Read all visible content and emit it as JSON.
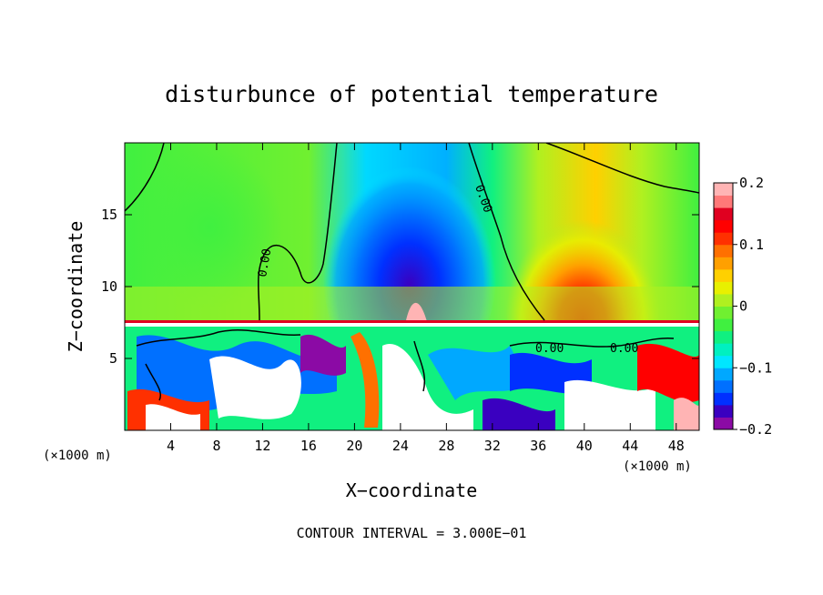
{
  "chart_data": {
    "type": "heatmap",
    "title": "disturbunce of potential temperature",
    "xlabel": "X−coordinate",
    "ylabel": "Z−coordinate",
    "x_unit": "(×1000 m)",
    "y_unit": "(×1000 m)",
    "xlim": [
      0,
      50
    ],
    "ylim": [
      0,
      20
    ],
    "x_ticks": [
      4,
      8,
      12,
      16,
      20,
      24,
      28,
      32,
      36,
      40,
      44,
      48
    ],
    "y_ticks": [
      5,
      10,
      15
    ],
    "colorbar": {
      "range": [
        -0.2,
        0.2
      ],
      "ticks": [
        0.2,
        0.1,
        0,
        -0.1,
        -0.2
      ],
      "tick_labels": [
        "0.2",
        "0.1",
        "0",
        "−0.1",
        "−0.2"
      ],
      "colors": [
        "#8b0aa5",
        "#3a00c0",
        "#0030ff",
        "#0070ff",
        "#00a8ff",
        "#00e6ff",
        "#00f0c0",
        "#10f080",
        "#40f040",
        "#70f030",
        "#b0f020",
        "#e8f000",
        "#ffd000",
        "#ffa000",
        "#ff7000",
        "#ff3000",
        "#ff0000",
        "#e00020",
        "#ff7878",
        "#ffb4b4"
      ]
    },
    "contour_label": "0.00",
    "contour_interval_text": "CONTOUR INTERVAL = 3.000E−01",
    "grid": false,
    "legend": "colorbar right"
  }
}
